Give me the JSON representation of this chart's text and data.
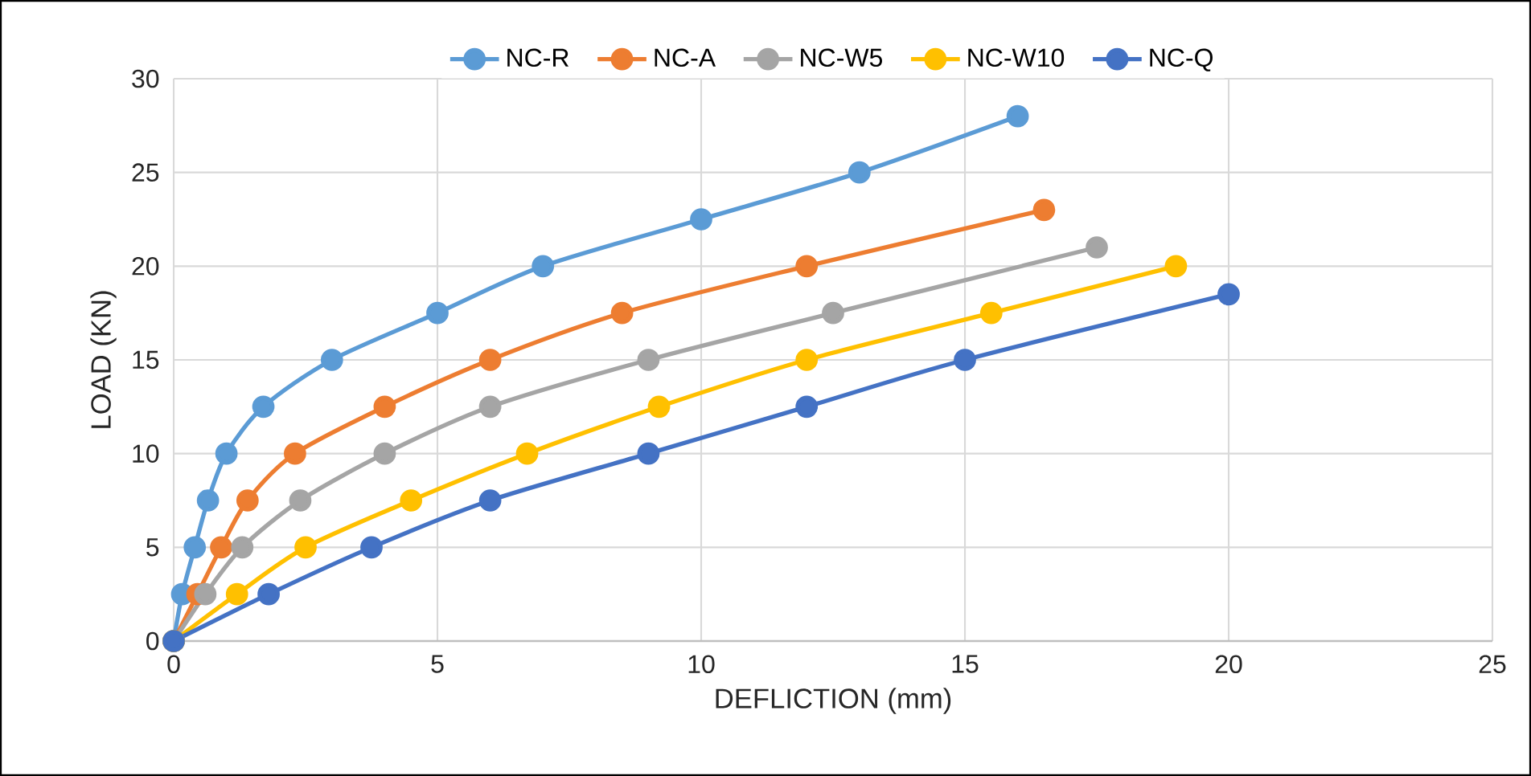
{
  "chart_data": {
    "type": "line",
    "xlabel": "DEFLICTION (mm)",
    "ylabel": "LOAD (KN)",
    "xlim": [
      0,
      25
    ],
    "ylim": [
      0,
      30
    ],
    "xticks": [
      0,
      5,
      10,
      15,
      20,
      25
    ],
    "yticks": [
      0,
      5,
      10,
      15,
      20,
      25,
      30
    ],
    "grid": true,
    "legend": "top",
    "marker": "circle",
    "line_style": "solid",
    "series": [
      {
        "name": "NC-R",
        "color": "#5b9bd5",
        "x": [
          0,
          0.16,
          0.4,
          0.65,
          1.0,
          1.7,
          3,
          5,
          7,
          10,
          13,
          16
        ],
        "values": [
          0,
          2.5,
          5,
          7.5,
          10,
          12.5,
          15,
          17.5,
          20,
          22.5,
          25,
          28
        ]
      },
      {
        "name": "NC-A",
        "color": "#ed7d31",
        "x": [
          0,
          0.45,
          0.9,
          1.4,
          2.3,
          4,
          6,
          8.5,
          12,
          16.5
        ],
        "values": [
          0,
          2.5,
          5,
          7.5,
          10,
          12.5,
          15,
          17.5,
          20,
          23
        ]
      },
      {
        "name": "NC-W5",
        "color": "#a5a5a5",
        "x": [
          0,
          0.6,
          1.3,
          2.4,
          4,
          6,
          9,
          12.5,
          17.5
        ],
        "values": [
          0,
          2.5,
          5,
          7.5,
          10,
          12.5,
          15,
          17.5,
          21
        ]
      },
      {
        "name": "NC-W10",
        "color": "#ffc000",
        "x": [
          0,
          1.2,
          2.5,
          4.5,
          6.7,
          9.2,
          12,
          15.5,
          19
        ],
        "values": [
          0,
          2.5,
          5,
          7.5,
          10,
          12.5,
          15,
          17.5,
          20
        ]
      },
      {
        "name": "NC-Q",
        "color": "#4472c4",
        "x": [
          0,
          1.8,
          3.75,
          6,
          9,
          12,
          15,
          20
        ],
        "values": [
          0,
          2.5,
          5,
          7.5,
          10,
          12.5,
          15,
          18.5
        ]
      }
    ]
  }
}
